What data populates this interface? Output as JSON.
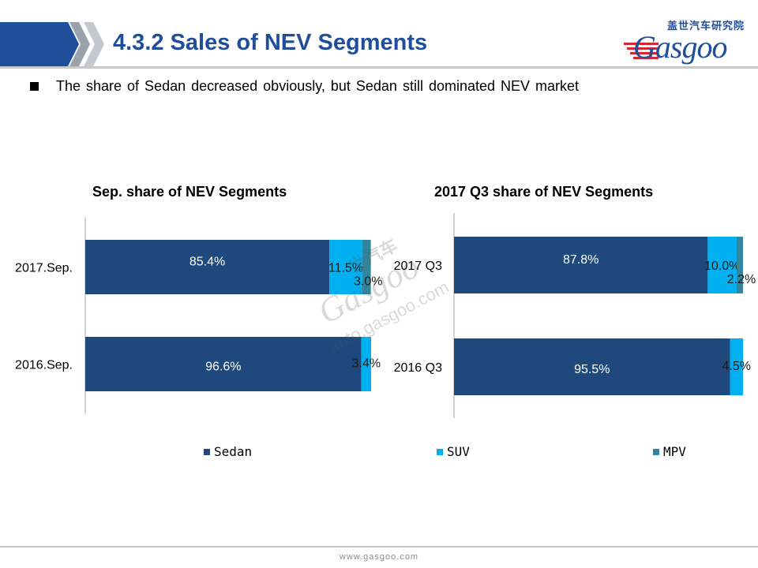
{
  "header": {
    "title": "4.3.2 Sales of NEV Segments",
    "logo_cn": "盖世汽车研究院",
    "logo_word": "Gasgoo"
  },
  "bullet": {
    "text": "The share of Sedan decreased obviously, but Sedan still dominated NEV market"
  },
  "legend": [
    {
      "label": "Sedan",
      "color": "#1f497d"
    },
    {
      "label": "SUV",
      "color": "#00b0f0"
    },
    {
      "label": "MPV",
      "color": "#31859c"
    }
  ],
  "chart_data": [
    {
      "type": "bar",
      "orientation": "horizontal",
      "stacked": "100%",
      "title": "Sep. share of NEV Segments",
      "categories": [
        "2017.Sep.",
        "2016.Sep."
      ],
      "series": [
        {
          "name": "Sedan",
          "values": [
            85.4,
            96.6
          ],
          "labels": [
            "85.4%",
            "96.6%"
          ],
          "color": "#1f497d"
        },
        {
          "name": "SUV",
          "values": [
            11.5,
            3.4
          ],
          "labels": [
            "11.5%",
            "3.4%"
          ],
          "color": "#00b0f0"
        },
        {
          "name": "MPV",
          "values": [
            3.0,
            0.0
          ],
          "labels": [
            "3.0%",
            ""
          ],
          "color": "#31859c"
        }
      ],
      "xlim": [
        0,
        100
      ],
      "grid": false
    },
    {
      "type": "bar",
      "orientation": "horizontal",
      "stacked": "100%",
      "title": "2017 Q3 share of NEV Segments",
      "categories": [
        "2017 Q3",
        "2016 Q3"
      ],
      "series": [
        {
          "name": "Sedan",
          "values": [
            87.8,
            95.5
          ],
          "labels": [
            "87.8%",
            "95.5%"
          ],
          "color": "#1f497d"
        },
        {
          "name": "SUV",
          "values": [
            10.0,
            4.5
          ],
          "labels": [
            "10.0%",
            "4.5%"
          ],
          "color": "#00b0f0"
        },
        {
          "name": "MPV",
          "values": [
            2.2,
            0.0
          ],
          "labels": [
            "2.2%",
            ""
          ],
          "color": "#31859c"
        }
      ],
      "xlim": [
        0,
        100
      ],
      "grid": false
    }
  ],
  "watermark": {
    "cn": "世汽车",
    "word": "Gasgoo",
    "url": "auto.gasgoo.com"
  },
  "footer": {
    "url": "www.gasgoo.com"
  }
}
